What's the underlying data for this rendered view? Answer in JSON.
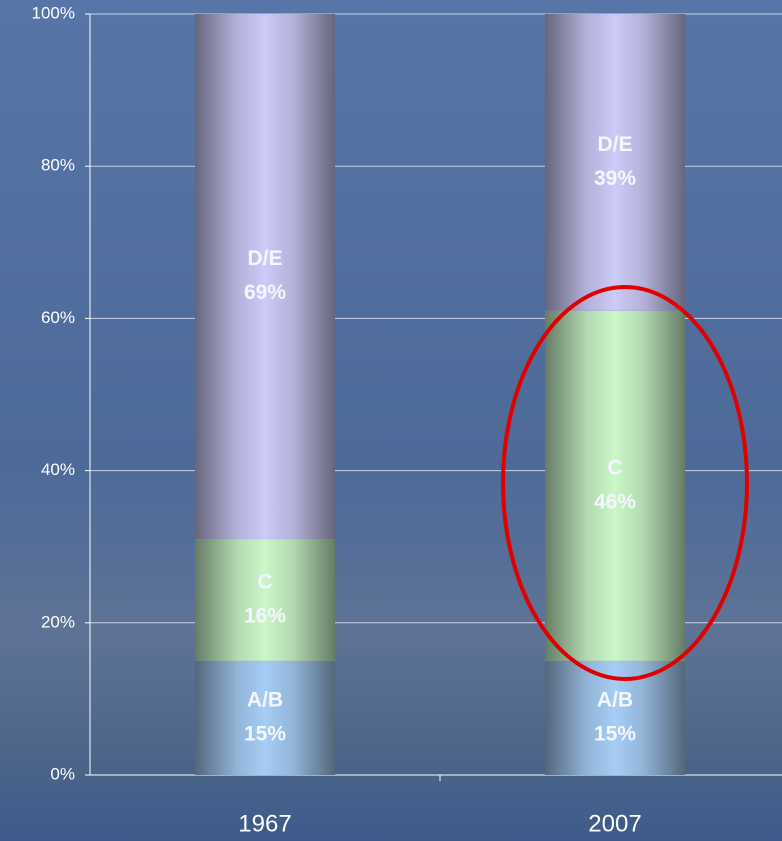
{
  "chart_data": {
    "type": "stacked-bar",
    "categories": [
      "1967",
      "2007"
    ],
    "series": [
      {
        "name": "A/B",
        "color": "#a6cdf5",
        "values": [
          15,
          15
        ],
        "value_labels": [
          "15%",
          "15%"
        ]
      },
      {
        "name": "C",
        "color": "#cbf7c8",
        "values": [
          16,
          46
        ],
        "value_labels": [
          "16%",
          "46%"
        ]
      },
      {
        "name": "D/E",
        "color": "#cccaf7",
        "values": [
          69,
          39
        ],
        "value_labels": [
          "69%",
          "39%"
        ]
      }
    ],
    "ylim": [
      0,
      100
    ],
    "yticks": [
      {
        "value": 0,
        "label": "0%"
      },
      {
        "value": 20,
        "label": "20%"
      },
      {
        "value": 40,
        "label": "40%"
      },
      {
        "value": 60,
        "label": "60%"
      },
      {
        "value": 80,
        "label": "80%"
      },
      {
        "value": 100,
        "label": "100%"
      }
    ],
    "grid": true
  }
}
